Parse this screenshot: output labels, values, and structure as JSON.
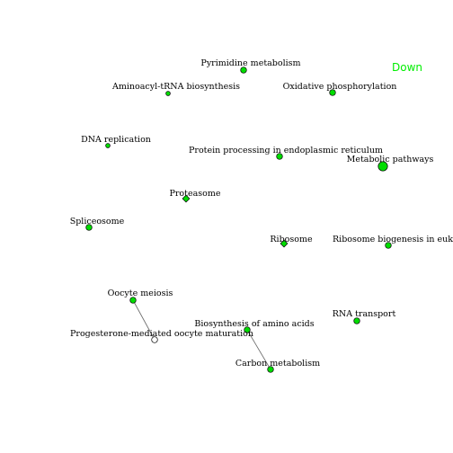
{
  "legend": {
    "label": "Down",
    "color": "#00ee00"
  },
  "node_fill": "#00dd00",
  "node_stroke": "#000000",
  "edge_color": "#666666",
  "nodes": [
    {
      "id": "pyrimidine",
      "label": "Pyrimidine metabolism",
      "shape": "circle",
      "size": "small"
    },
    {
      "id": "aminoacyl",
      "label": "Aminoacyl-tRNA biosynthesis",
      "shape": "circle",
      "size": "tiny"
    },
    {
      "id": "oxphos",
      "label": "Oxidative phosphorylation",
      "shape": "circle",
      "size": "small"
    },
    {
      "id": "dna-replication",
      "label": "DNA replication",
      "shape": "circle",
      "size": "tiny"
    },
    {
      "id": "protein-processing",
      "label": "Protein processing in endoplasmic reticulum",
      "shape": "circle",
      "size": "small"
    },
    {
      "id": "metabolic",
      "label": "Metabolic pathways",
      "shape": "circle",
      "size": "large"
    },
    {
      "id": "proteasome",
      "label": "Proteasome",
      "shape": "diamond",
      "size": "small"
    },
    {
      "id": "spliceosome",
      "label": "Spliceosome",
      "shape": "circle",
      "size": "small"
    },
    {
      "id": "ribosome",
      "label": "Ribosome",
      "shape": "diamond",
      "size": "small"
    },
    {
      "id": "ribosome-biogenesis",
      "label": "Ribosome biogenesis in eukaryotes",
      "shape": "circle",
      "size": "small"
    },
    {
      "id": "oocyte-meiosis",
      "label": "Oocyte meiosis",
      "shape": "circle",
      "size": "small"
    },
    {
      "id": "progesterone",
      "label": "Progesterone-mediated oocyte maturation",
      "shape": "circle-white",
      "size": "small"
    },
    {
      "id": "rna-transport",
      "label": "RNA transport",
      "shape": "circle",
      "size": "small"
    },
    {
      "id": "aa-biosynthesis",
      "label": "Biosynthesis of amino acids",
      "shape": "circle",
      "size": "small"
    },
    {
      "id": "carbon",
      "label": "Carbon metabolism",
      "shape": "circle",
      "size": "small"
    }
  ],
  "edges": [
    {
      "from": "oocyte-meiosis",
      "to": "progesterone"
    },
    {
      "from": "aa-biosynthesis",
      "to": "carbon"
    }
  ]
}
